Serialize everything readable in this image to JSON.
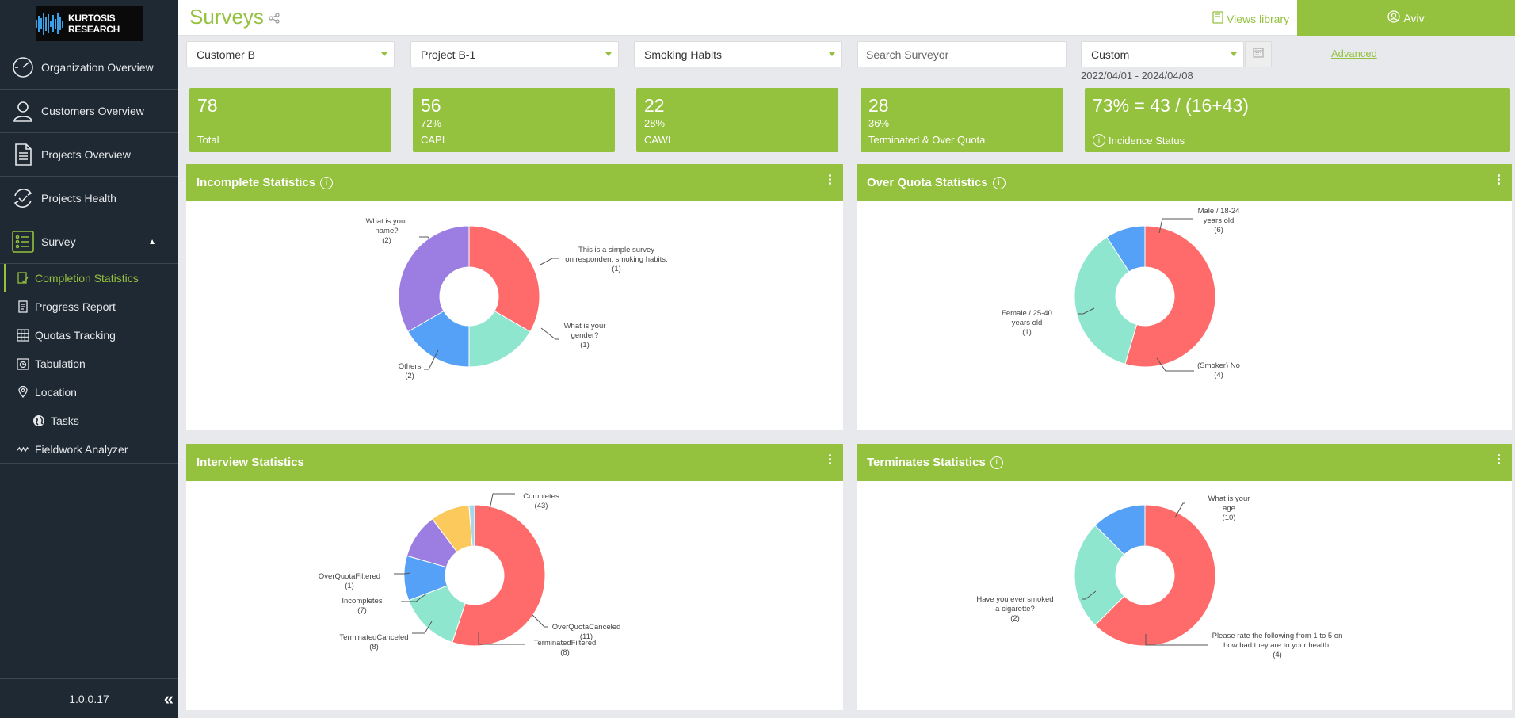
{
  "sidebar": {
    "logo_text": "KURTOSIS RESEARCH",
    "main_items": [
      {
        "label": "Organization Overview",
        "icon": "dashboard-gauge-icon"
      },
      {
        "label": "Customers Overview",
        "icon": "user-icon"
      },
      {
        "label": "Projects Overview",
        "icon": "document-icon"
      },
      {
        "label": "Projects Health",
        "icon": "refresh-check-icon"
      },
      {
        "label": "Survey",
        "icon": "checklist-icon",
        "expanded": true
      }
    ],
    "sub_items": [
      {
        "label": "Completion Statistics",
        "icon": "completion-icon",
        "active": true
      },
      {
        "label": "Progress Report",
        "icon": "report-icon"
      },
      {
        "label": "Quotas Tracking",
        "icon": "grid-table-icon"
      },
      {
        "label": "Tabulation",
        "icon": "tabulation-icon"
      },
      {
        "label": "Location",
        "icon": "location-pin-icon"
      },
      {
        "label": "Tasks",
        "icon": "globe-icon"
      },
      {
        "label": "Fieldwork Analyzer",
        "icon": "wave-icon"
      }
    ],
    "version": "1.0.0.17"
  },
  "header": {
    "title": "Surveys",
    "views_library": "Views library",
    "user": "Aviv"
  },
  "filters": {
    "customer": "Customer B",
    "project": "Project B-1",
    "survey": "Smoking Habits",
    "search_placeholder": "Search Surveyor",
    "period": "Custom",
    "date_range": "2022/04/01 - 2024/04/08",
    "advanced": "Advanced"
  },
  "stats": [
    {
      "value": "78",
      "percent": "",
      "label": "Total"
    },
    {
      "value": "56",
      "percent": "72%",
      "label": "CAPI"
    },
    {
      "value": "22",
      "percent": "28%",
      "label": "CAWI"
    },
    {
      "value": "28",
      "percent": "36%",
      "label": "Terminated & Over Quota"
    },
    {
      "value": "73% = 43 / (16+43)",
      "percent": "",
      "label": "Incidence Status"
    }
  ],
  "colors": {
    "accent": "#94c13e",
    "sidebar": "#1f2933",
    "red": "#ff6b6b",
    "teal": "#8ee6cf",
    "blue": "#55a1f7",
    "purple": "#9c7ee2",
    "yellow": "#fcc95d",
    "lightblue": "#a6d8ec"
  },
  "panels": {
    "incomplete": {
      "title": "Incomplete Statistics"
    },
    "overquota": {
      "title": "Over Quota Statistics"
    },
    "interview": {
      "title": "Interview Statistics"
    },
    "terminates": {
      "title": "Terminates Statistics"
    }
  },
  "chart_data": [
    {
      "type": "pie",
      "title": "Incomplete Statistics",
      "slices": [
        {
          "label": "What is your name?",
          "value": 2,
          "color": "#ff6b6b"
        },
        {
          "label": "This is a simple survey on respondent smoking habits.",
          "value": 1,
          "color": "#8ee6cf"
        },
        {
          "label": "What is your gender?",
          "value": 1,
          "color": "#55a1f7"
        },
        {
          "label": "Others",
          "value": 2,
          "color": "#9c7ee2"
        }
      ]
    },
    {
      "type": "pie",
      "title": "Over Quota Statistics",
      "slices": [
        {
          "label": "Male / 18-24 years old",
          "value": 6,
          "color": "#ff6b6b"
        },
        {
          "label": "(Smoker) No",
          "value": 4,
          "color": "#8ee6cf"
        },
        {
          "label": "Female / 25-40 years old",
          "value": 1,
          "color": "#55a1f7"
        }
      ]
    },
    {
      "type": "pie",
      "title": "Interview Statistics",
      "slices": [
        {
          "label": "Completes",
          "value": 43,
          "color": "#ff6b6b"
        },
        {
          "label": "OverQuotaCanceled",
          "value": 11,
          "color": "#8ee6cf"
        },
        {
          "label": "TerminatedFiltered",
          "value": 8,
          "color": "#55a1f7"
        },
        {
          "label": "TerminatedCanceled",
          "value": 8,
          "color": "#9c7ee2"
        },
        {
          "label": "Incompletes",
          "value": 7,
          "color": "#fcc95d"
        },
        {
          "label": "OverQuotaFiltered",
          "value": 1,
          "color": "#a6d8ec"
        }
      ]
    },
    {
      "type": "pie",
      "title": "Terminates Statistics",
      "slices": [
        {
          "label": "What is your age",
          "value": 10,
          "color": "#ff6b6b"
        },
        {
          "label": "Please rate the following from 1 to 5 on how bad they are to your health:",
          "value": 4,
          "color": "#8ee6cf"
        },
        {
          "label": "Have you ever smoked a cigarette?",
          "value": 2,
          "color": "#55a1f7"
        }
      ]
    }
  ]
}
